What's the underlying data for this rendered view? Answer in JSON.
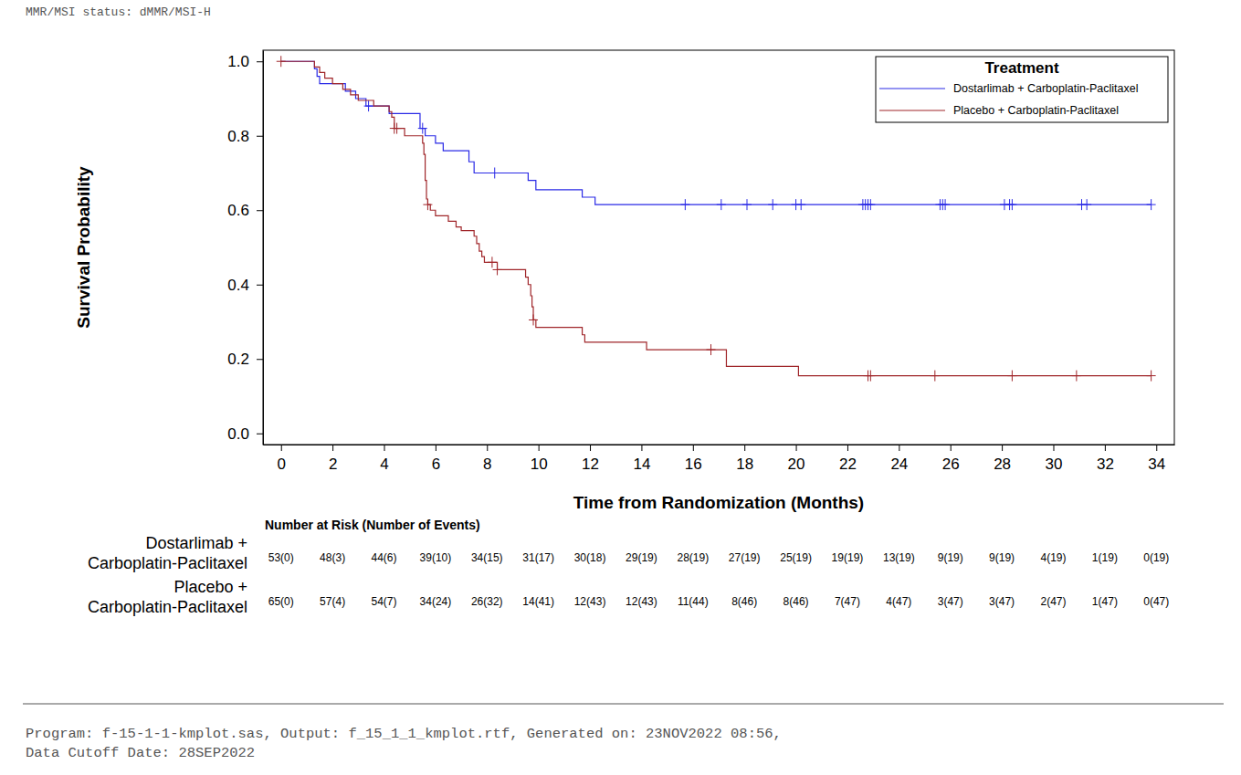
{
  "chart_data": {
    "type": "line",
    "subtitle": "MMR/MSI status: dMMR/MSI-H",
    "x_label": "Time from Randomization (Months)",
    "y_label": "Survival Probability",
    "legend_title": "Treatment",
    "legend": "upper right",
    "grid": false,
    "xlim": [
      -0.7,
      34.7
    ],
    "xticks": [
      0,
      2,
      4,
      6,
      8,
      10,
      12,
      14,
      16,
      18,
      20,
      22,
      24,
      26,
      28,
      30,
      32,
      34
    ],
    "ylim": [
      -0.03,
      1.03
    ],
    "yticks": [
      {
        "value": 0,
        "label": "0.0"
      },
      0.2,
      0.4,
      0.6,
      0.8,
      {
        "value": 1,
        "label": "1.0"
      }
    ],
    "series": [
      {
        "name": "Dostarlimab + Carboplatin-Paclitaxel",
        "color": "#2a2ae6",
        "line_style": "step",
        "marker": "plus",
        "x": [
          0,
          1.3,
          1.4,
          1.5,
          2.5,
          2.9,
          3.3,
          4.2,
          5.4,
          5.6,
          6.0,
          6.3,
          7.3,
          7.5,
          9.6,
          9.9,
          11.7,
          12.2,
          33.8
        ],
        "values": [
          1,
          0.98,
          0.96,
          0.94,
          0.92,
          0.9,
          0.88,
          0.86,
          0.82,
          0.8,
          0.78,
          0.76,
          0.73,
          0.7,
          0.68,
          0.655,
          0.635,
          0.615,
          0.615
        ],
        "censor_x": [
          3.4,
          5.5,
          8.3,
          15.7,
          17.1,
          18.1,
          19.1,
          20.0,
          20.2,
          22.6,
          22.7,
          22.8,
          22.9,
          25.6,
          25.7,
          25.8,
          28.1,
          28.3,
          28.4,
          31.1,
          31.3,
          33.8
        ],
        "censor_values": [
          0.88,
          0.82,
          0.7,
          0.615,
          0.615,
          0.615,
          0.615,
          0.615,
          0.615,
          0.615,
          0.615,
          0.615,
          0.615,
          0.615,
          0.615,
          0.615,
          0.615,
          0.615,
          0.615,
          0.615,
          0.615,
          0.615
        ]
      },
      {
        "name": "Placebo + Carboplatin-Paclitaxel",
        "color": "#a0262a",
        "line_style": "step",
        "marker": "plus",
        "x": [
          0,
          1.3,
          1.5,
          1.7,
          2.0,
          2.4,
          2.7,
          3.0,
          3.6,
          4.2,
          4.3,
          4.4,
          4.8,
          5.5,
          5.55,
          5.6,
          5.65,
          5.7,
          5.8,
          6.0,
          6.5,
          6.8,
          7.0,
          7.5,
          7.6,
          7.7,
          7.8,
          7.9,
          8.4,
          9.5,
          9.6,
          9.7,
          9.75,
          9.8,
          9.9,
          11.7,
          11.8,
          14.2,
          17.3,
          20.1,
          33.8
        ],
        "values": [
          1,
          0.985,
          0.97,
          0.955,
          0.94,
          0.925,
          0.91,
          0.895,
          0.88,
          0.865,
          0.85,
          0.82,
          0.8,
          0.78,
          0.75,
          0.68,
          0.63,
          0.615,
          0.6,
          0.585,
          0.57,
          0.555,
          0.545,
          0.53,
          0.51,
          0.49,
          0.475,
          0.46,
          0.44,
          0.42,
          0.4,
          0.37,
          0.34,
          0.305,
          0.285,
          0.265,
          0.245,
          0.225,
          0.18,
          0.155,
          0.155
        ],
        "censor_x": [
          0,
          4.4,
          4.5,
          5.7,
          8.2,
          8.4,
          9.8,
          16.7,
          22.8,
          22.9,
          25.4,
          28.4,
          30.9,
          33.8
        ],
        "censor_values": [
          1,
          0.82,
          0.82,
          0.615,
          0.46,
          0.44,
          0.305,
          0.225,
          0.155,
          0.155,
          0.155,
          0.155,
          0.155,
          0.155
        ]
      }
    ],
    "risk_table": {
      "title": "Number at Risk (Number of Events)",
      "rows": [
        {
          "label": [
            "Dostarlimab +",
            "Carboplatin-Paclitaxel"
          ],
          "cells": [
            "53(0)",
            "48(3)",
            "44(6)",
            "39(10)",
            "34(15)",
            "31(17)",
            "30(18)",
            "29(19)",
            "28(19)",
            "27(19)",
            "25(19)",
            "19(19)",
            "13(19)",
            "9(19)",
            "9(19)",
            "4(19)",
            "1(19)",
            "0(19)"
          ]
        },
        {
          "label": [
            "Placebo +",
            "Carboplatin-Paclitaxel"
          ],
          "cells": [
            "65(0)",
            "57(4)",
            "54(7)",
            "34(24)",
            "26(32)",
            "14(41)",
            "12(43)",
            "12(43)",
            "11(44)",
            "8(46)",
            "8(46)",
            "7(47)",
            "4(47)",
            "3(47)",
            "3(47)",
            "2(47)",
            "1(47)",
            "0(47)"
          ]
        }
      ]
    },
    "footnotes": [
      "Program: f-15-1-1-kmplot.sas, Output: f_15_1_1_kmplot.rtf, Generated on: 23NOV2022 08:56,",
      "Data Cutoff Date: 28SEP2022"
    ]
  }
}
